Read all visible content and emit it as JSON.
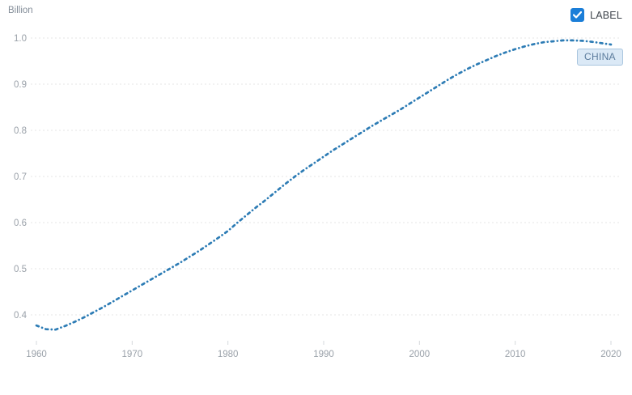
{
  "chart": {
    "unit_label": "Billion",
    "label_toggle": {
      "text": "LABEL",
      "checked": true
    },
    "series_chip": {
      "text": "CHINA"
    }
  },
  "colors": {
    "line": "#2d7cb5",
    "gridline": "#e4e4e4",
    "tick_mark": "#d6d9dc",
    "tick_text": "#9aa1a9",
    "unit_text": "#848e99",
    "checkbox_blue": "#1b7ed8",
    "chip_bg": "#dbe9f6",
    "chip_border": "#a9c6de",
    "chip_text": "#5b7b9c"
  },
  "chart_data": {
    "type": "line",
    "title": "",
    "ylabel": "Billion",
    "xlabel": "",
    "line_style": "dotted",
    "grid": "horizontal-dashed",
    "legend_position": "none",
    "annotation": "CHINA chip at end of line",
    "xlim": [
      1959.4,
      2021.3
    ],
    "ylim": [
      0.345,
      1.06
    ],
    "xticks": [
      1960,
      1970,
      1980,
      1990,
      2000,
      2010,
      2020
    ],
    "yticks": [
      0.4,
      0.5,
      0.6,
      0.7,
      0.8,
      0.9,
      1.0
    ],
    "x": [
      1960,
      1961,
      1962,
      1963,
      1964,
      1965,
      1966,
      1967,
      1968,
      1969,
      1970,
      1971,
      1972,
      1973,
      1974,
      1975,
      1976,
      1977,
      1978,
      1979,
      1980,
      1981,
      1982,
      1983,
      1984,
      1985,
      1986,
      1987,
      1988,
      1989,
      1990,
      1991,
      1992,
      1993,
      1994,
      1995,
      1996,
      1997,
      1998,
      1999,
      2000,
      2001,
      2002,
      2003,
      2004,
      2005,
      2006,
      2007,
      2008,
      2009,
      2010,
      2011,
      2012,
      2013,
      2014,
      2015,
      2016,
      2017,
      2018,
      2019,
      2020
    ],
    "series": [
      {
        "name": "CHINA",
        "values": [
          0.377,
          0.369,
          0.368,
          0.376,
          0.385,
          0.395,
          0.406,
          0.417,
          0.429,
          0.441,
          0.453,
          0.465,
          0.477,
          0.489,
          0.501,
          0.513,
          0.526,
          0.539,
          0.553,
          0.567,
          0.582,
          0.6,
          0.617,
          0.634,
          0.65,
          0.667,
          0.684,
          0.7,
          0.715,
          0.729,
          0.743,
          0.757,
          0.77,
          0.783,
          0.796,
          0.809,
          0.821,
          0.833,
          0.845,
          0.858,
          0.871,
          0.884,
          0.897,
          0.91,
          0.922,
          0.933,
          0.943,
          0.952,
          0.961,
          0.969,
          0.976,
          0.982,
          0.987,
          0.991,
          0.993,
          0.995,
          0.995,
          0.994,
          0.992,
          0.989,
          0.986
        ]
      }
    ]
  }
}
